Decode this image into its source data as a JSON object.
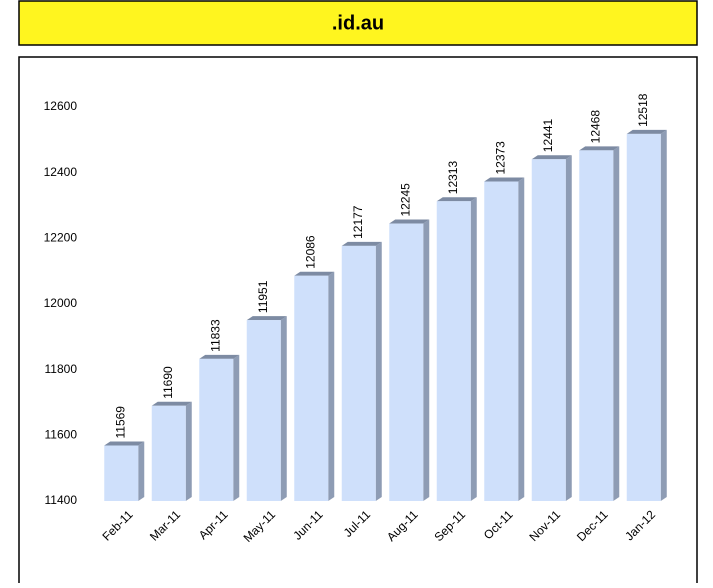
{
  "chart_data": {
    "type": "bar",
    "title": ".id.au",
    "categories": [
      "Feb-11",
      "Mar-11",
      "Apr-11",
      "May-11",
      "Jun-11",
      "Jul-11",
      "Aug-11",
      "Sep-11",
      "Oct-11",
      "Nov-11",
      "Dec-11",
      "Jan-12"
    ],
    "values": [
      11569,
      11690,
      11833,
      11951,
      12086,
      12177,
      12245,
      12313,
      12373,
      12441,
      12468,
      12518
    ],
    "color": "#cfe0fb",
    "ylim": [
      11400,
      12600
    ],
    "yticks": [
      11400,
      11600,
      11800,
      12000,
      12200,
      12400,
      12600
    ],
    "grid": false
  }
}
